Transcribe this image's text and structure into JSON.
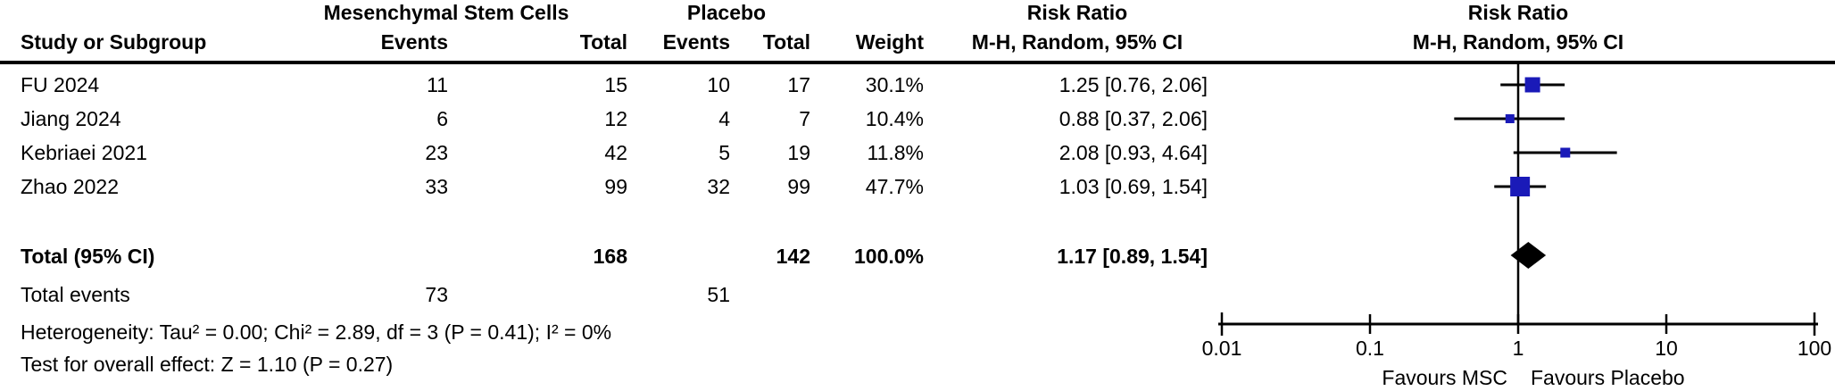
{
  "table": {
    "group_headers": {
      "msc": "Mesenchymal Stem Cells",
      "placebo": "Placebo",
      "risk_ratio_text": "Risk Ratio",
      "risk_ratio_plot": "Risk Ratio"
    },
    "col_headers": {
      "study": "Study or Subgroup",
      "events1": "Events",
      "total1": "Total",
      "events2": "Events",
      "total2": "Total",
      "weight": "Weight",
      "mh_text": "M-H, Random, 95% CI",
      "mh_plot": "M-H, Random, 95% CI"
    },
    "rows": [
      {
        "study": "FU 2024",
        "events1": "11",
        "total1": "15",
        "events2": "10",
        "total2": "17",
        "weight": "30.1%",
        "ci": "1.25 [0.76, 2.06]"
      },
      {
        "study": "Jiang 2024",
        "events1": "6",
        "total1": "12",
        "events2": "4",
        "total2": "7",
        "weight": "10.4%",
        "ci": "0.88 [0.37, 2.06]"
      },
      {
        "study": "Kebriaei 2021",
        "events1": "23",
        "total1": "42",
        "events2": "5",
        "total2": "19",
        "weight": "11.8%",
        "ci": "2.08 [0.93, 4.64]"
      },
      {
        "study": "Zhao 2022",
        "events1": "33",
        "total1": "99",
        "events2": "32",
        "total2": "99",
        "weight": "47.7%",
        "ci": "1.03 [0.69, 1.54]"
      }
    ],
    "total_row": {
      "label": "Total (95% CI)",
      "total1": "168",
      "total2": "142",
      "weight": "100.0%",
      "ci": "1.17 [0.89, 1.54]"
    },
    "total_events": {
      "label": "Total events",
      "events1": "73",
      "events2": "51"
    },
    "heterogeneity": "Heterogeneity: Tau² = 0.00; Chi² = 2.89, df = 3 (P = 0.41); I² = 0%",
    "overall_effect": "Test for overall effect: Z = 1.10 (P = 0.27)"
  },
  "chart_data": {
    "type": "forest",
    "effect_measure": "Risk Ratio",
    "model": "M-H, Random, 95% CI",
    "x_scale": "log10",
    "axis_range": [
      0.01,
      100
    ],
    "axis_ticks": [
      0.01,
      0.1,
      1,
      10,
      100
    ],
    "studies": [
      {
        "name": "FU 2024",
        "rr": 1.25,
        "ci_low": 0.76,
        "ci_high": 2.06,
        "weight_pct": 30.1
      },
      {
        "name": "Jiang 2024",
        "rr": 0.88,
        "ci_low": 0.37,
        "ci_high": 2.06,
        "weight_pct": 10.4
      },
      {
        "name": "Kebriaei 2021",
        "rr": 2.08,
        "ci_low": 0.93,
        "ci_high": 4.64,
        "weight_pct": 11.8
      },
      {
        "name": "Zhao 2022",
        "rr": 1.03,
        "ci_low": 0.69,
        "ci_high": 1.54,
        "weight_pct": 47.7
      }
    ],
    "total": {
      "rr": 1.17,
      "ci_low": 0.89,
      "ci_high": 1.54
    },
    "favours_left": "Favours MSC",
    "favours_right": "Favours Placebo",
    "marker_color": "#1a1ab8",
    "line_color": "#000000"
  }
}
